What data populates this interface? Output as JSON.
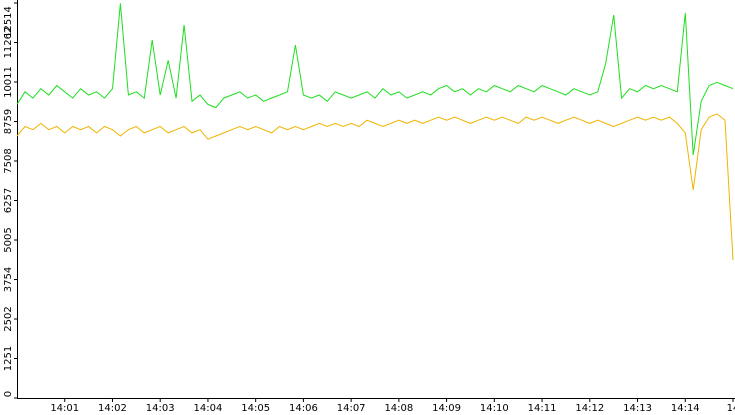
{
  "chart_data": {
    "type": "line",
    "categories": [
      null,
      null,
      null,
      null,
      null,
      null,
      "14:01",
      null,
      null,
      null,
      null,
      null,
      "14:02",
      null,
      null,
      null,
      null,
      null,
      "14:03",
      null,
      null,
      null,
      null,
      null,
      "14:04",
      null,
      null,
      null,
      null,
      null,
      "14:05",
      null,
      null,
      null,
      null,
      null,
      "14:06",
      null,
      null,
      null,
      null,
      null,
      "14:07",
      null,
      null,
      null,
      null,
      null,
      "14:08",
      null,
      null,
      null,
      null,
      null,
      "14:09",
      null,
      null,
      null,
      null,
      null,
      "14:10",
      null,
      null,
      null,
      null,
      null,
      "14:11",
      null,
      null,
      null,
      null,
      null,
      "14:12",
      null,
      null,
      null,
      null,
      null,
      "14:13",
      null,
      null,
      null,
      null,
      null,
      "14:14",
      null,
      null,
      null,
      null,
      null,
      "14"
    ],
    "series": [
      {
        "color": "#1fdf1f",
        "values": [
          9300,
          9700,
          9500,
          9800,
          9600,
          9900,
          9700,
          9500,
          9800,
          9600,
          9700,
          9500,
          9800,
          12500,
          9600,
          9700,
          9500,
          11340,
          9600,
          10700,
          9500,
          11820,
          9400,
          9600,
          9300,
          9200,
          9500,
          9600,
          9700,
          9500,
          9600,
          9400,
          9500,
          9600,
          9700,
          11180,
          9600,
          9500,
          9600,
          9400,
          9700,
          9600,
          9500,
          9600,
          9700,
          9500,
          9800,
          9600,
          9700,
          9500,
          9600,
          9700,
          9600,
          9800,
          9900,
          9700,
          9800,
          9600,
          9800,
          9700,
          9900,
          9800,
          9700,
          9900,
          9800,
          9700,
          9900,
          9800,
          9700,
          9600,
          9800,
          9700,
          9600,
          9700,
          10600,
          12130,
          9500,
          9800,
          9700,
          9900,
          9800,
          9900,
          9800,
          9700,
          12200,
          7700,
          9400,
          9900,
          10000,
          9900,
          9800
        ]
      },
      {
        "color": "#f0b400",
        "values": [
          8300,
          8600,
          8500,
          8700,
          8500,
          8600,
          8400,
          8600,
          8500,
          8600,
          8400,
          8600,
          8500,
          8300,
          8500,
          8600,
          8400,
          8500,
          8600,
          8400,
          8500,
          8600,
          8400,
          8500,
          8200,
          8300,
          8400,
          8500,
          8600,
          8500,
          8600,
          8500,
          8400,
          8600,
          8500,
          8600,
          8500,
          8600,
          8700,
          8600,
          8700,
          8600,
          8700,
          8600,
          8800,
          8700,
          8600,
          8700,
          8800,
          8700,
          8800,
          8700,
          8800,
          8900,
          8800,
          8900,
          8800,
          8700,
          8800,
          8900,
          8800,
          8900,
          8800,
          8700,
          8900,
          8800,
          8900,
          8800,
          8700,
          8800,
          8900,
          8800,
          8700,
          8800,
          8700,
          8600,
          8700,
          8800,
          8900,
          8800,
          8900,
          8800,
          8900,
          8700,
          8400,
          6590,
          8500,
          8900,
          9000,
          8800,
          4370
        ]
      }
    ],
    "ylim": [
      0,
      12514
    ],
    "yticks": [
      0,
      1251,
      2502,
      3754,
      5005,
      6257,
      7508,
      8759,
      10011,
      11262,
      12514
    ]
  }
}
